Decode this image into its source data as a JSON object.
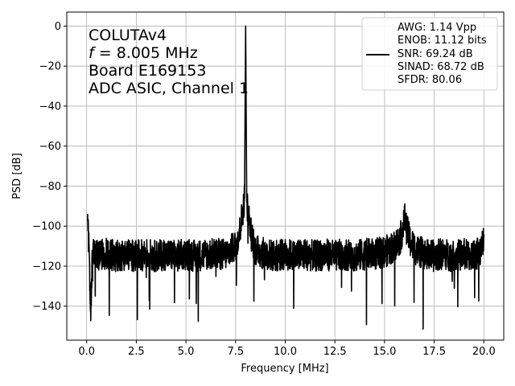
{
  "chart_data": {
    "type": "line",
    "xlabel": "Frequency [MHz]",
    "ylabel": "PSD [dB]",
    "xlim": [
      -1.0,
      21.0
    ],
    "ylim": [
      -157,
      7
    ],
    "xticks": [
      0.0,
      2.5,
      5.0,
      7.5,
      10.0,
      12.5,
      15.0,
      17.5,
      20.0
    ],
    "xtick_labels": [
      "0.0",
      "2.5",
      "5.0",
      "7.5",
      "10.0",
      "12.5",
      "15.0",
      "17.5",
      "20.0"
    ],
    "yticks": [
      0,
      -20,
      -40,
      -60,
      -80,
      -100,
      -120,
      -140
    ],
    "ytick_labels": [
      "0",
      "−20",
      "−40",
      "−60",
      "−80",
      "−100",
      "−120",
      "−140"
    ],
    "grid": true,
    "line_color": "#000000",
    "annotation": {
      "line1": "COLUTAv4",
      "line2_italic": "f",
      "line2_rest": " = 8.005 MHz",
      "line3": "Board E169153",
      "line4": "ADC ASIC, Channel 1"
    },
    "legend": {
      "placement": "top-right",
      "lines": [
        "AWG: 1.14 Vpp",
        "ENOB: 11.12 bits",
        "SNR: 69.24 dB",
        "SINAD: 68.72 dB",
        "SFDR: 80.06"
      ]
    },
    "series": [
      {
        "x": [
          0.05,
          0.1,
          0.2,
          0.3,
          0.4,
          0.6,
          0.8,
          1.0,
          1.5,
          2.0,
          2.5,
          3.0,
          3.5,
          4.0,
          4.5,
          5.0,
          5.5,
          6.0,
          6.5,
          7.0,
          7.5,
          7.7,
          7.85,
          7.95,
          8.005,
          8.06,
          8.15,
          8.3,
          8.5,
          9.0,
          9.5,
          10.0,
          10.5,
          11.0,
          11.5,
          12.0,
          12.5,
          13.0,
          13.5,
          14.0,
          14.5,
          15.0,
          15.5,
          15.8,
          15.95,
          16.01,
          16.1,
          16.3,
          16.6,
          17.0,
          17.5,
          17.8,
          18.0,
          18.5,
          19.0,
          19.3,
          19.6,
          19.85,
          20.0
        ],
        "y": [
          -97,
          -108,
          -142,
          -112,
          -114,
          -115,
          -114,
          -114,
          -115,
          -114,
          -115,
          -114,
          -115,
          -114,
          -115,
          -114,
          -115,
          -114,
          -114,
          -114,
          -110,
          -103,
          -93,
          -86,
          0,
          -88,
          -94,
          -105,
          -112,
          -114,
          -115,
          -114,
          -115,
          -114,
          -115,
          -114,
          -115,
          -114,
          -115,
          -114,
          -114,
          -113,
          -110,
          -106,
          -100,
          -96,
          -101,
          -108,
          -112,
          -114,
          -115,
          -114,
          -114,
          -115,
          -114,
          -115,
          -114,
          -113,
          -104
        ]
      }
    ]
  }
}
